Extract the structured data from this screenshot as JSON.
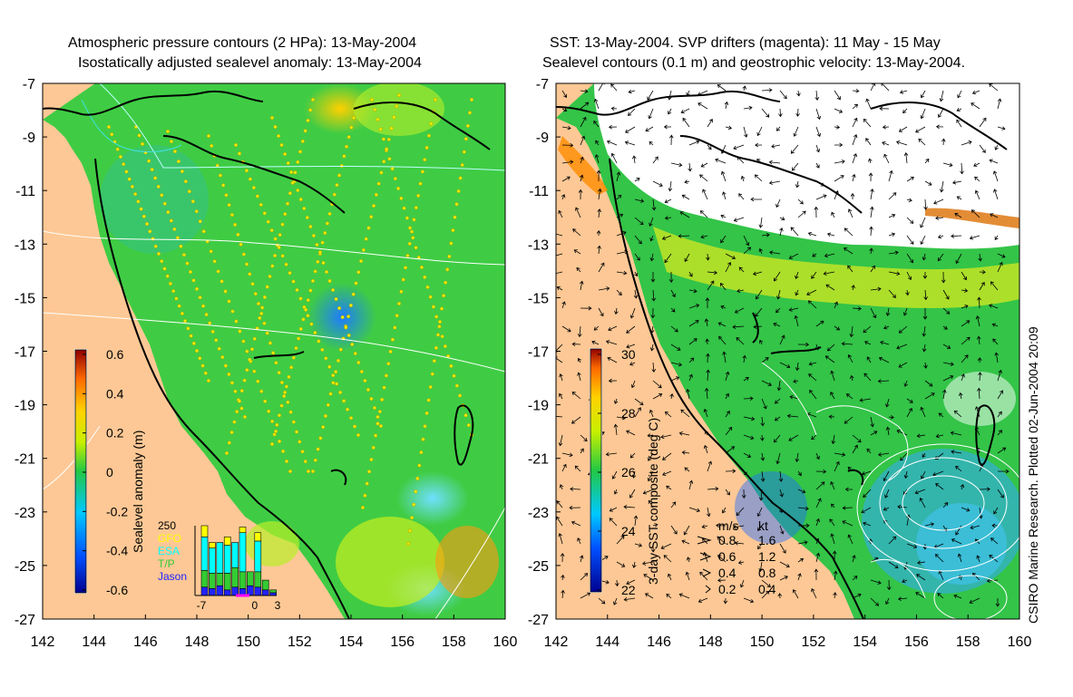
{
  "left_panel": {
    "title_line1": "Atmospheric pressure contours (2 HPa): 13-May-2004",
    "title_line2": "Isostatically adjusted sealevel anomaly: 13-May-2004",
    "colorbar": {
      "label": "Sealevel anomaly (m)",
      "ticks": [
        "0.6",
        "0.4",
        "0.2",
        "0",
        "-0.2",
        "-0.4",
        "-0.6"
      ],
      "min": -0.6,
      "max": 0.6
    },
    "inset": {
      "ytick": "250",
      "legend": [
        {
          "name": "GFO",
          "color": "#ffff00"
        },
        {
          "name": "ESA",
          "color": "#00ffff"
        },
        {
          "name": "T/P",
          "color": "#33cc33"
        },
        {
          "name": "Jason",
          "color": "#2222ff"
        }
      ],
      "xticks": [
        "-7",
        "0",
        "3"
      ],
      "bars": [
        {
          "x": -7,
          "jason": 30,
          "tp": 60,
          "esa": 120,
          "gfo": 40
        },
        {
          "x": -6,
          "jason": 25,
          "tp": 55,
          "esa": 90,
          "gfo": 20
        },
        {
          "x": -5,
          "jason": 35,
          "tp": 45,
          "esa": 110,
          "gfo": 0
        },
        {
          "x": -4,
          "jason": 20,
          "tp": 60,
          "esa": 100,
          "gfo": 30
        },
        {
          "x": -3,
          "jason": 30,
          "tp": 70,
          "esa": 90,
          "gfo": 0
        },
        {
          "x": -2,
          "jason": 25,
          "tp": 60,
          "esa": 140,
          "gfo": 20
        },
        {
          "x": -1,
          "jason": 35,
          "tp": 50,
          "esa": 0,
          "gfo": 0
        },
        {
          "x": 0,
          "jason": 30,
          "tp": 55,
          "esa": 110,
          "gfo": 30
        },
        {
          "x": 1,
          "jason": 20,
          "tp": 35,
          "esa": 0,
          "gfo": 0
        },
        {
          "x": 2,
          "jason": 10,
          "tp": 10,
          "esa": 0,
          "gfo": 0
        }
      ]
    }
  },
  "right_panel": {
    "title_line1": "SST: 13-May-2004. SVP drifters (magenta): 11 May - 15 May",
    "title_line2": "Sealevel contours (0.1 m) and geostrophic velocity: 13-May-2004.",
    "colorbar": {
      "label": "3-day SST composite (deg C)",
      "ticks": [
        "30",
        "28",
        "26",
        "24",
        "22"
      ],
      "min": 22,
      "max": 30
    },
    "velocity_legend": {
      "header_ms": "m/s",
      "header_kt": "kt",
      "rows": [
        {
          "ms": "0.8",
          "kt": "1.6"
        },
        {
          "ms": "0.6",
          "kt": "1.2"
        },
        {
          "ms": "0.4",
          "kt": "0.8"
        },
        {
          "ms": "0.2",
          "kt": "0.4"
        }
      ]
    }
  },
  "axes": {
    "y_ticks": [
      "-7",
      "-9",
      "-11",
      "-13",
      "-15",
      "-17",
      "-19",
      "-21",
      "-23",
      "-25",
      "-27"
    ],
    "x_ticks": [
      "142",
      "144",
      "146",
      "148",
      "150",
      "152",
      "154",
      "156",
      "158",
      "160"
    ],
    "lon_range": [
      142,
      160
    ],
    "lat_range": [
      -27,
      -7
    ]
  },
  "credit": "CSIRO Marine Research. Plotted 02-Jun-2004 20:09",
  "colors": {
    "land": "#fdc895",
    "ocean_sla": "#3fcc44",
    "ocean_sst": "#33c448",
    "coast": "#000000"
  }
}
